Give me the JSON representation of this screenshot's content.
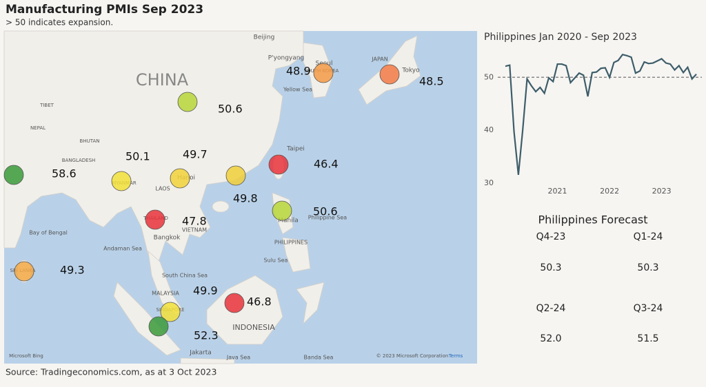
{
  "header": {
    "title": "Manufacturing PMIs Sep 2023",
    "subtitle": "> 50 indicates expansion."
  },
  "chart_data": [
    {
      "type": "bubble_map",
      "values": [
        58.6,
        50.1,
        49.7,
        50.6,
        48.9,
        48.5,
        46.4,
        49.8,
        50.6,
        47.8,
        49.3,
        49.9,
        52.3,
        46.8
      ],
      "colors": [
        "#3a9a3a",
        "#f2e03a",
        "#f2d23a",
        "#b7d63a",
        "#f59a45",
        "#f27a45",
        "#e8333a",
        "#f0cf3a",
        "#b7d63a",
        "#e8333a",
        "#f5a945",
        "#f2e03a",
        "#3a9a3a",
        "#e8333a"
      ],
      "map_labels": [
        "CHINA",
        "Beijing",
        "P'yongyang",
        "Seoul",
        "SOUTH KOREA",
        "JAPAN",
        "Tokyo",
        "Yellow Sea",
        "Taipei",
        "Hanoi",
        "LAOS",
        "VIETNAM",
        "MYANMAR",
        "THAILAND",
        "Bangkok",
        "Manila",
        "PHILIPPINES",
        "Philippine Sea",
        "Sulu Sea",
        "South China Sea",
        "Andaman Sea",
        "Bay of Bengal",
        "SRI LANKA",
        "MALAYSIA",
        "SINGAPORE",
        "INDONESIA",
        "Jakarta",
        "Java Sea",
        "Banda Sea",
        "NEPAL",
        "BHUTAN",
        "BANGLADESH",
        "TIBET",
        "Microsoft Bing",
        "© 2023 Microsoft Corporation",
        "Terms"
      ]
    },
    {
      "type": "line",
      "title": "Philippines Jan 2020 - Sep 2023",
      "color": "#3d5d69",
      "x": [
        2020,
        2020.0833,
        2020.1667,
        2020.25,
        2020.3333,
        2020.4167,
        2020.5,
        2020.5833,
        2020.6667,
        2020.75,
        2020.8333,
        2020.9167,
        2021,
        2021.0833,
        2021.1667,
        2021.25,
        2021.3333,
        2021.4167,
        2021.5,
        2021.5833,
        2021.6667,
        2021.75,
        2021.8333,
        2021.9167,
        2022,
        2022.0833,
        2022.1667,
        2022.25,
        2022.3333,
        2022.4167,
        2022.5,
        2022.5833,
        2022.6667,
        2022.75,
        2022.8333,
        2022.9167,
        2023,
        2023.0833,
        2023.1667,
        2023.25,
        2023.3333,
        2023.4167,
        2023.5,
        2023.5833,
        2023.6667
      ],
      "values": [
        52.1,
        52.3,
        39.7,
        31.6,
        40.1,
        49.7,
        48.4,
        47.3,
        48.1,
        47.0,
        49.9,
        49.2,
        52.5,
        52.5,
        52.2,
        49.0,
        49.9,
        50.8,
        50.4,
        46.4,
        50.9,
        51.0,
        51.7,
        51.8,
        50.0,
        52.8,
        53.2,
        54.3,
        54.1,
        53.8,
        50.8,
        51.2,
        52.9,
        52.6,
        52.7,
        53.1,
        53.5,
        52.7,
        52.5,
        51.4,
        52.2,
        50.9,
        51.9,
        49.7,
        50.6
      ],
      "xlim": [
        2020,
        2023.6667
      ],
      "xticks": [
        2021,
        2022,
        2023
      ],
      "ylim": [
        29.5,
        55.5
      ],
      "yticks": [
        30,
        40,
        50
      ],
      "reference_line": 50
    }
  ],
  "forecast": {
    "title": "Philippines Forecast",
    "items": [
      {
        "period": "Q4-23",
        "value": "50.3"
      },
      {
        "period": "Q1-24",
        "value": "50.3"
      },
      {
        "period": "Q2-24",
        "value": "52.0"
      },
      {
        "period": "Q3-24",
        "value": "51.5"
      }
    ]
  },
  "source": "Source: Tradingeconomics.com, as at 3 Oct 2023"
}
